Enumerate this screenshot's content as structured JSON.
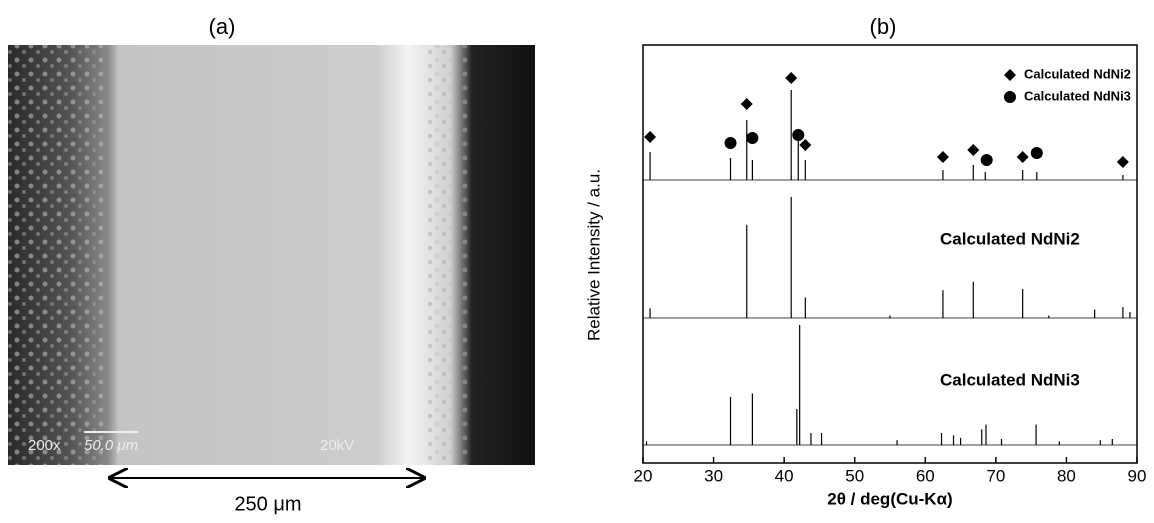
{
  "panel_a": {
    "label": "(a)",
    "magnification": "200x",
    "scale_bar": "50.0 μm",
    "voltage": "20kV",
    "width_label": "250 μm"
  },
  "chart_data": {
    "type": "stick",
    "label": "(b)",
    "xlabel": "2θ / deg(Cu-Kα)",
    "ylabel": "Relative Intensity / a.u.",
    "xlim": [
      20,
      90
    ],
    "xticks": [
      20,
      30,
      40,
      50,
      60,
      70,
      80,
      90
    ],
    "color": "#000000",
    "patterns": [
      {
        "x": [
          21,
          32.4,
          34.7,
          35.5,
          41,
          42,
          43,
          62.5,
          66.8,
          68.5,
          73.8,
          75.8,
          88
        ],
        "values": [
          28,
          22,
          60,
          20,
          90,
          40,
          20,
          10,
          15,
          8,
          10,
          8,
          5
        ]
      },
      {
        "name": "Calculated NdNi2",
        "x": [
          21,
          34.7,
          41,
          43,
          55,
          62.5,
          66.8,
          73.8,
          77.5,
          84,
          88,
          89
        ],
        "values": [
          8,
          77,
          100,
          17,
          2,
          23,
          30,
          24,
          2,
          7,
          9,
          5
        ]
      },
      {
        "name": "Calculated NdNi3",
        "x": [
          20.5,
          32.4,
          35.5,
          41.8,
          42.2,
          43.8,
          45.3,
          56,
          62.3,
          64,
          65,
          68,
          68.6,
          70.8,
          75.7,
          79,
          84.8,
          86.5
        ],
        "values": [
          3,
          40,
          43,
          30,
          100,
          10,
          10,
          4,
          10,
          8,
          6,
          13,
          17,
          5,
          17,
          3,
          4,
          5
        ]
      }
    ],
    "markers": [
      {
        "shape": "diamond",
        "label": "Calculated NdNi2",
        "x": [
          21,
          34.7,
          41,
          43,
          62.5,
          66.8,
          73.8,
          88
        ],
        "y": [
          43,
          76,
          102,
          35,
          23,
          30,
          23,
          18
        ]
      },
      {
        "shape": "circle",
        "label": "Calculated NdNi3",
        "x": [
          32.4,
          35.5,
          42,
          68.7,
          75.8
        ],
        "y": [
          37,
          42,
          45,
          20,
          27
        ]
      }
    ]
  }
}
